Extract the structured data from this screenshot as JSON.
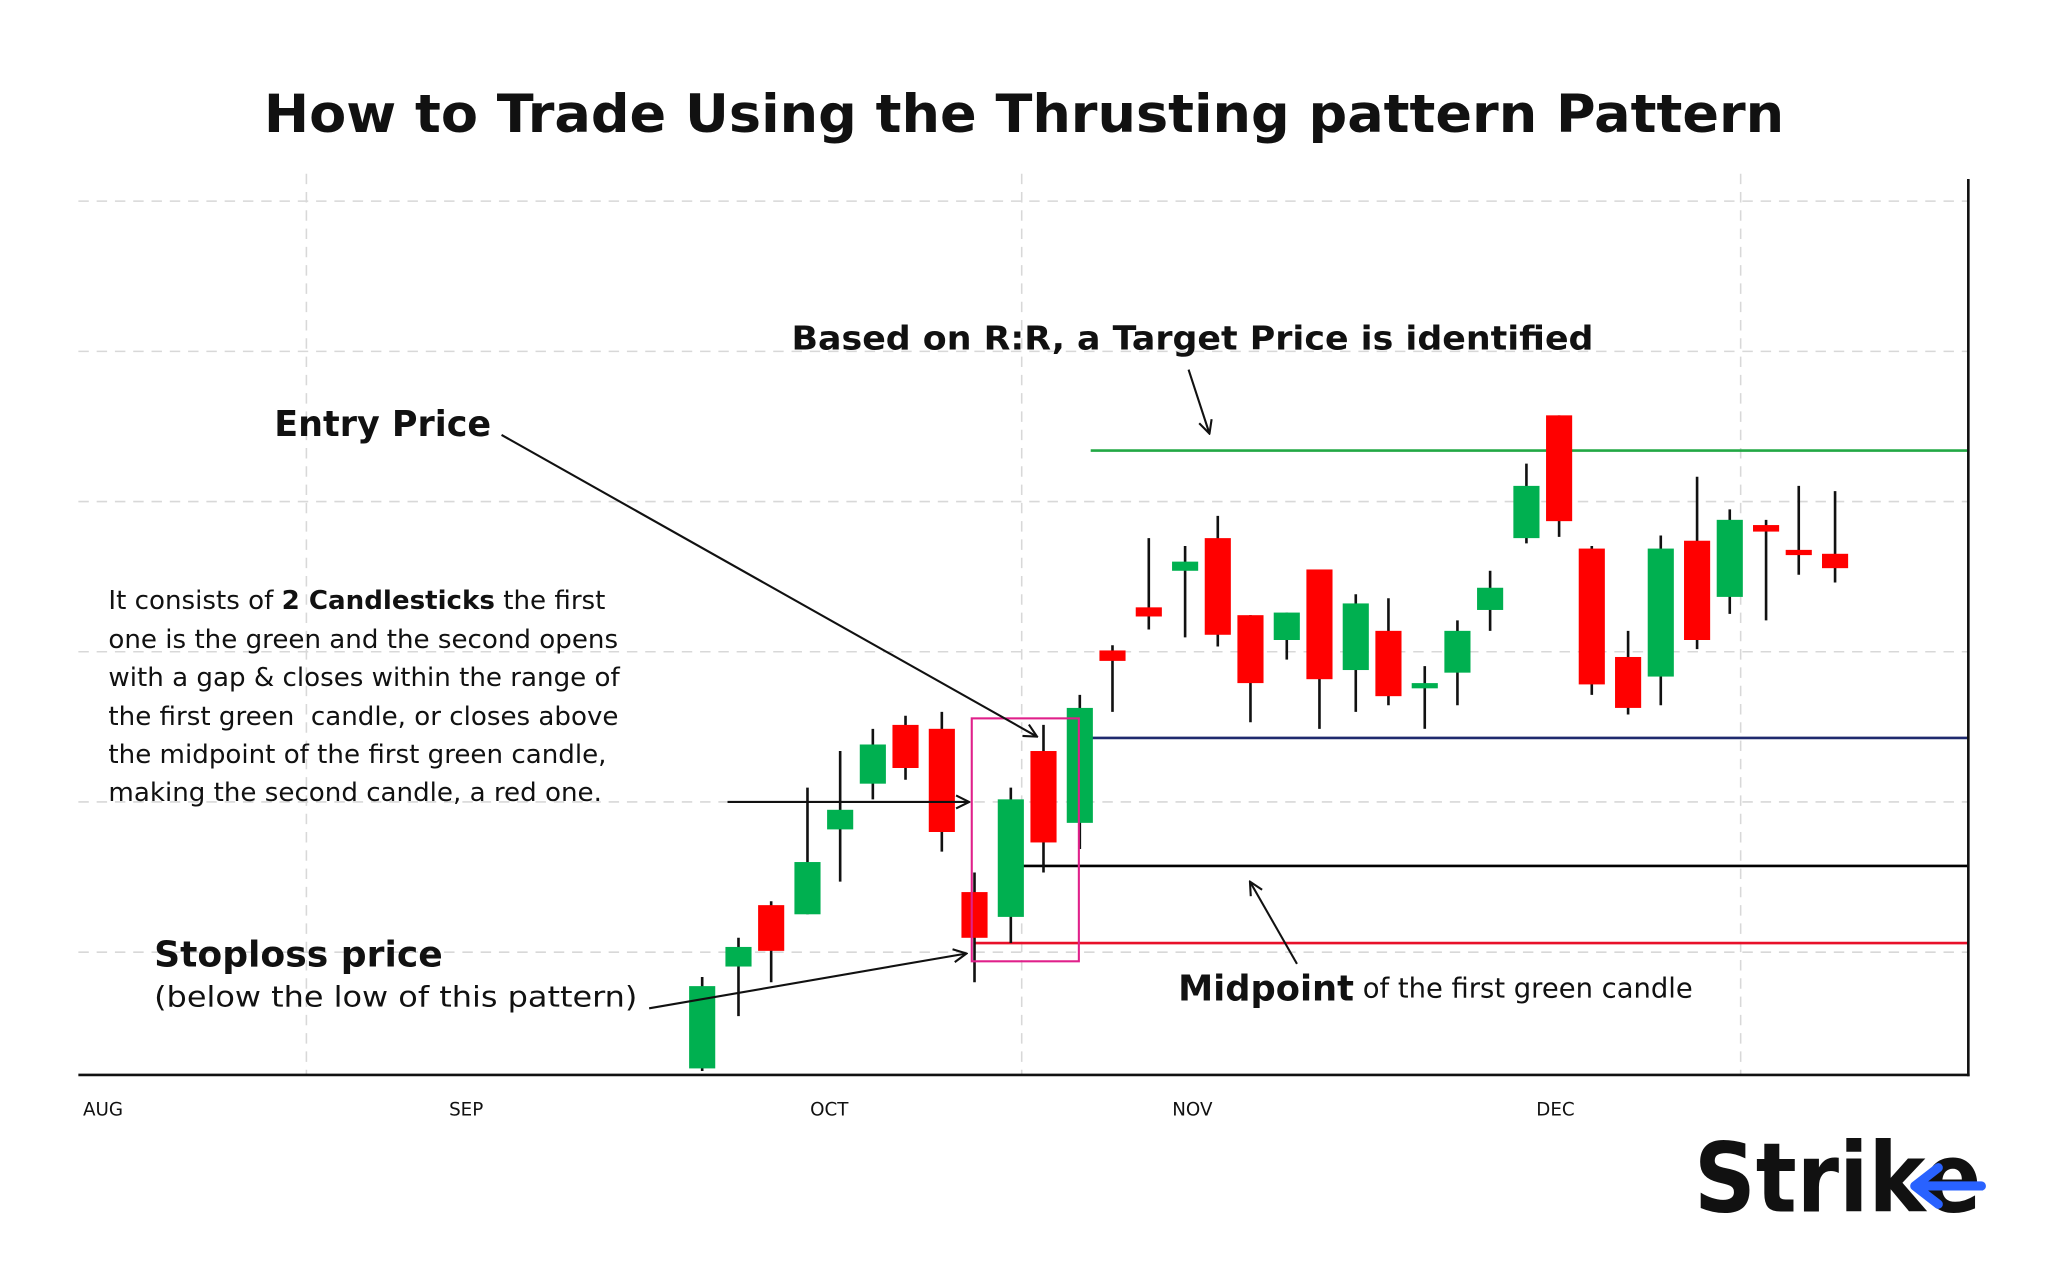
{
  "chart_data": {
    "type": "candlestick",
    "title": "How to Trade Using the Thrusting pattern Pattern",
    "x": [
      16.5,
      17.5,
      18.4,
      19.4,
      20.3,
      21.2,
      22.1,
      23.1,
      24.0,
      25.0,
      25.9,
      26.9,
      27.8,
      28.8,
      29.8,
      30.7,
      31.6,
      32.6,
      33.5,
      34.5,
      35.4,
      36.4,
      37.3,
      38.2,
      39.2,
      40.1,
      41.0,
      42.0,
      42.9,
      43.9,
      44.8,
      45.8,
      46.7,
      47.7
    ],
    "open": [
      5,
      83,
      130,
      123,
      188,
      223,
      268,
      265,
      140,
      121,
      248,
      193,
      325,
      358,
      386,
      411,
      352,
      333,
      387,
      310,
      340,
      296,
      308,
      356,
      411,
      505,
      403,
      320,
      305,
      409,
      366,
      421,
      402,
      399
    ],
    "high": [
      75,
      105,
      133,
      220,
      248,
      265,
      275,
      278,
      155,
      220,
      268,
      291,
      329,
      411,
      405,
      428,
      352,
      354,
      387,
      368,
      365,
      313,
      348,
      386,
      468,
      505,
      405,
      340,
      413,
      458,
      433,
      425,
      451,
      447
    ],
    "low": [
      3,
      45,
      71,
      123,
      148,
      211,
      226,
      171,
      71,
      101,
      155,
      173,
      278,
      341,
      335,
      328,
      270,
      318,
      265,
      278,
      283,
      265,
      283,
      340,
      407,
      412,
      291,
      276,
      283,
      326,
      353,
      348,
      383,
      377
    ],
    "close": [
      68,
      98,
      95,
      163,
      203,
      253,
      235,
      186,
      105,
      211,
      178,
      281,
      317,
      351,
      393,
      337,
      300,
      354,
      303,
      361,
      290,
      300,
      340,
      373,
      451,
      424,
      299,
      281,
      403,
      333,
      425,
      416,
      398,
      388
    ],
    "up_color": "#00b050",
    "down_color": "#ff0000",
    "xlim": [
      -0.68,
      51.37
    ],
    "ylim": [
      0,
      690
    ],
    "xticks": [
      {
        "value": 0,
        "label": "AUG"
      },
      {
        "value": 10,
        "label": "SEP"
      },
      {
        "value": 20,
        "label": "OCT"
      },
      {
        "value": 30,
        "label": "NOV"
      },
      {
        "value": 40,
        "label": "DEC"
      }
    ],
    "grid_y": [
      94,
      209,
      324,
      439,
      554,
      669
    ],
    "grid_x": [
      5.6,
      25.3,
      45.1
    ],
    "levels": [
      {
        "value": 478,
        "x": 27.2,
        "color": "#22a845"
      },
      {
        "value": 258,
        "x": 27.2,
        "color": "#1f2a6e"
      },
      {
        "value": 160,
        "x": 25.0,
        "color": "#000000"
      },
      {
        "value": 101,
        "x": 24.0,
        "color": "#e8102a"
      }
    ],
    "annotations": {
      "target": "Based on R:R, a Target Price is identified",
      "entry": "Entry Price",
      "description_first": [
        "It consists of ",
        "2 Candlesticks",
        " the first"
      ],
      "description": [
        "one is the green and the second opens",
        "with a gap & closes within the range of",
        "the first green  candle, or closes above",
        "the midpoint of the first green candle,",
        "making the second candle, a red one."
      ],
      "stoploss": "Stoploss price",
      "stoploss_note": "(below the low of this pattern)",
      "midpoint": [
        "Midpoint",
        " of the first green candle"
      ]
    }
  },
  "logo": "Strike"
}
